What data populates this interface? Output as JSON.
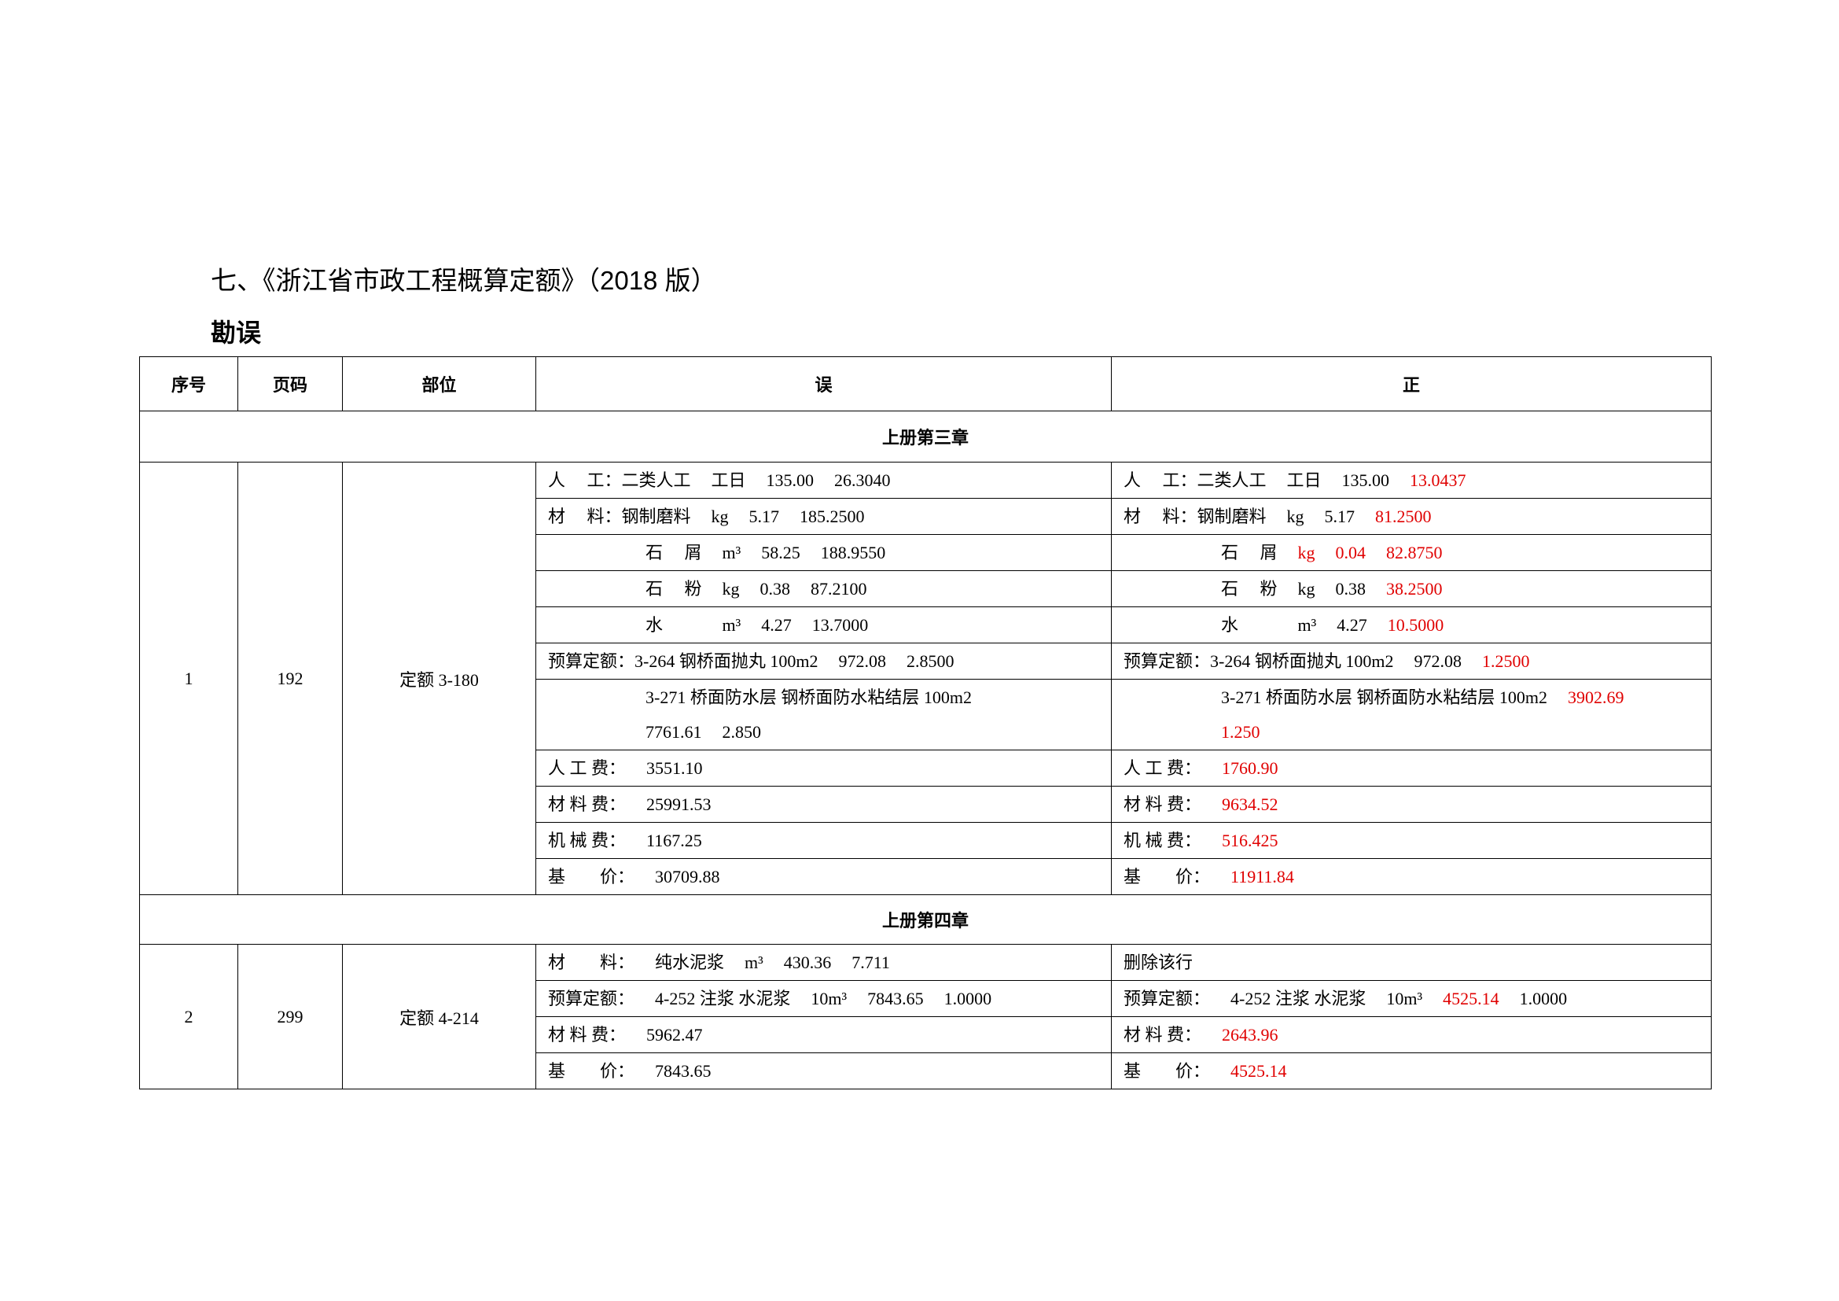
{
  "title": "七、《浙江省市政工程概算定额》（2018 版）",
  "subtitle": "勘误",
  "colors": {
    "correction": "#e00000"
  },
  "headers": [
    "序号",
    "页码",
    "部位",
    "误",
    "正"
  ],
  "sections": [
    {
      "chapter": "上册第三章",
      "entries": [
        {
          "no": "1",
          "page": "192",
          "part": "定额 3-180",
          "rows": [
            {
              "indent": false,
              "wrong": [
                {
                  "t": "人　 工：二类人工"
                },
                {
                  "t": "工日"
                },
                {
                  "t": "135.00"
                },
                {
                  "t": "26.3040"
                }
              ],
              "right": [
                {
                  "t": "人　 工：二类人工"
                },
                {
                  "t": "工日"
                },
                {
                  "t": "135.00"
                },
                {
                  "t": "13.0437",
                  "red": true
                }
              ]
            },
            {
              "indent": false,
              "wrong": [
                {
                  "t": "材　 料：钢制磨料"
                },
                {
                  "t": "kg"
                },
                {
                  "t": "5.17"
                },
                {
                  "t": "185.2500"
                }
              ],
              "right": [
                {
                  "t": "材　 料：钢制磨料"
                },
                {
                  "t": "kg"
                },
                {
                  "t": "5.17"
                },
                {
                  "t": "81.2500",
                  "red": true
                }
              ]
            },
            {
              "indent": true,
              "wrong": [
                {
                  "t": "石　 屑"
                },
                {
                  "t": "m³"
                },
                {
                  "t": "58.25"
                },
                {
                  "t": "188.9550"
                }
              ],
              "right": [
                {
                  "t": "石　 屑"
                },
                {
                  "t": "kg",
                  "red": true
                },
                {
                  "t": "0.04",
                  "red": true
                },
                {
                  "t": "82.8750",
                  "red": true
                }
              ]
            },
            {
              "indent": true,
              "wrong": [
                {
                  "t": "石　 粉"
                },
                {
                  "t": "kg"
                },
                {
                  "t": "0.38"
                },
                {
                  "t": "87.2100"
                }
              ],
              "right": [
                {
                  "t": "石　 粉"
                },
                {
                  "t": "kg"
                },
                {
                  "t": "0.38"
                },
                {
                  "t": "38.2500",
                  "red": true
                }
              ]
            },
            {
              "indent": true,
              "wrong": [
                {
                  "t": "水　　 "
                },
                {
                  "t": "m³"
                },
                {
                  "t": "4.27"
                },
                {
                  "t": "13.7000"
                }
              ],
              "right": [
                {
                  "t": "水　　 "
                },
                {
                  "t": "m³"
                },
                {
                  "t": "4.27"
                },
                {
                  "t": "10.5000",
                  "red": true
                }
              ]
            },
            {
              "indent": false,
              "wrong": [
                {
                  "t": "预算定额：3-264 钢桥面抛丸 100m2"
                },
                {
                  "t": "972.08"
                },
                {
                  "t": "2.8500"
                }
              ],
              "right": [
                {
                  "t": "预算定额：3-264 钢桥面抛丸 100m2"
                },
                {
                  "t": "972.08"
                },
                {
                  "t": "1.2500",
                  "red": true
                }
              ]
            },
            {
              "indent": true,
              "tall": true,
              "wrong": [
                {
                  "t": "3-271 桥面防水层 钢桥面防水粘结层 100m2"
                }
              ],
              "wrong2": [
                {
                  "t": "7761.61"
                },
                {
                  "t": "2.850"
                }
              ],
              "right": [
                {
                  "t": "3-271 桥面防水层 钢桥面防水粘结层 100m2"
                },
                {
                  "t": "3902.69",
                  "red": true
                }
              ],
              "right2": [
                {
                  "t": "1.250",
                  "red": true
                }
              ]
            },
            {
              "indent": false,
              "wrong": [
                {
                  "t": "人 工 费："
                },
                {
                  "t": "3551.10"
                }
              ],
              "right": [
                {
                  "t": "人 工 费："
                },
                {
                  "t": "1760.90",
                  "red": true
                }
              ]
            },
            {
              "indent": false,
              "wrong": [
                {
                  "t": "材 料 费："
                },
                {
                  "t": "25991.53"
                }
              ],
              "right": [
                {
                  "t": "材 料 费："
                },
                {
                  "t": "9634.52",
                  "red": true
                }
              ]
            },
            {
              "indent": false,
              "wrong": [
                {
                  "t": "机 械 费："
                },
                {
                  "t": "1167.25"
                }
              ],
              "right": [
                {
                  "t": "机 械 费："
                },
                {
                  "t": "516.425",
                  "red": true
                }
              ]
            },
            {
              "indent": false,
              "wrong": [
                {
                  "t": "基　　价："
                },
                {
                  "t": "30709.88"
                }
              ],
              "right": [
                {
                  "t": "基　　价："
                },
                {
                  "t": "11911.84",
                  "red": true
                }
              ]
            }
          ]
        }
      ]
    },
    {
      "chapter": "上册第四章",
      "entries": [
        {
          "no": "2",
          "page": "299",
          "part": "定额 4-214",
          "rows": [
            {
              "indent": false,
              "wrong": [
                {
                  "t": "材　　料："
                },
                {
                  "t": "纯水泥浆"
                },
                {
                  "t": "m³"
                },
                {
                  "t": "430.36"
                },
                {
                  "t": "7.711"
                }
              ],
              "right": [
                {
                  "t": "删除该行"
                }
              ]
            },
            {
              "indent": false,
              "wrong": [
                {
                  "t": "预算定额："
                },
                {
                  "t": "4-252 注浆 水泥浆"
                },
                {
                  "t": "10m³"
                },
                {
                  "t": "7843.65"
                },
                {
                  "t": "1.0000"
                }
              ],
              "right": [
                {
                  "t": "预算定额："
                },
                {
                  "t": "4-252 注浆 水泥浆"
                },
                {
                  "t": "10m³"
                },
                {
                  "t": "4525.14",
                  "red": true
                },
                {
                  "t": "1.0000"
                }
              ]
            },
            {
              "indent": false,
              "wrong": [
                {
                  "t": "材 料 费："
                },
                {
                  "t": "5962.47"
                }
              ],
              "right": [
                {
                  "t": "材 料 费："
                },
                {
                  "t": "2643.96",
                  "red": true
                }
              ]
            },
            {
              "indent": false,
              "wrong": [
                {
                  "t": "基　　价："
                },
                {
                  "t": "7843.65"
                }
              ],
              "right": [
                {
                  "t": "基　　价："
                },
                {
                  "t": "4525.14",
                  "red": true
                }
              ]
            }
          ]
        }
      ]
    }
  ]
}
